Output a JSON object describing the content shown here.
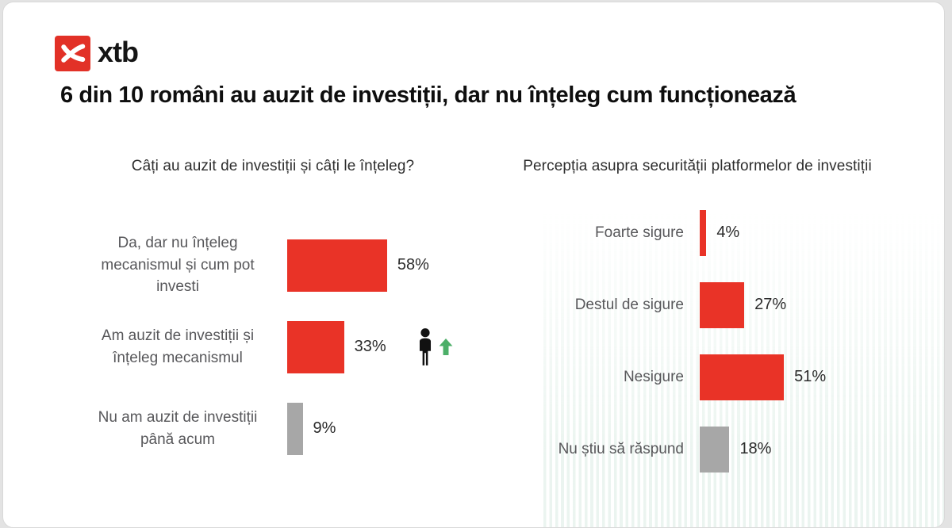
{
  "brand": {
    "logo_text": "xtb"
  },
  "page_title": "6 din 10 români au auzit de investiții, dar nu înțeleg cum funcționează",
  "colors": {
    "logo_red": "#e23127",
    "bar_red": "#e93327",
    "bar_gray": "#a7a7a7",
    "arrow_green": "#4caf68"
  },
  "chart_data": [
    {
      "type": "bar",
      "orientation": "horizontal",
      "title": "Câți au auzit de investiții și câți le înțeleg?",
      "categories": [
        "Da, dar nu înțeleg mecanismul și cum pot investi",
        "Am auzit de investiții și înțeleg mecanismul",
        "Nu am auzit de investiții până acum"
      ],
      "values": [
        58,
        33,
        9
      ],
      "value_labels": [
        "58%",
        "33%",
        "9%"
      ],
      "bar_colors": [
        "red",
        "red",
        "gray"
      ],
      "unit": "%",
      "xlim": [
        0,
        100
      ],
      "grid": false,
      "annotations": [
        "person-with-green-up-arrow icon beside the 33% bar"
      ]
    },
    {
      "type": "bar",
      "orientation": "horizontal",
      "title": "Percepția asupra securității platformelor de investiții",
      "categories": [
        "Foarte sigure",
        "Destul de sigure",
        "Nesigure",
        "Nu știu să răspund"
      ],
      "values": [
        4,
        27,
        51,
        18
      ],
      "value_labels": [
        "4%",
        "27%",
        "51%",
        "18%"
      ],
      "bar_colors": [
        "red",
        "red",
        "red",
        "gray"
      ],
      "unit": "%",
      "xlim": [
        0,
        100
      ],
      "grid": false
    }
  ]
}
